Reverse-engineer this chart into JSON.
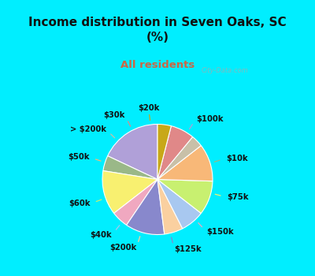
{
  "title": "Income distribution in Seven Oaks, SC\n(%)",
  "subtitle": "All residents",
  "title_color": "#111111",
  "subtitle_color": "#cc6644",
  "bg_cyan": "#00eeff",
  "bg_chart_tl": "#e8f5f0",
  "bg_chart_br": "#d0eee8",
  "labels": [
    "$100k",
    "$10k",
    "$75k",
    "$150k",
    "$125k",
    "$200k",
    "$40k",
    "$60k",
    "$50k",
    "> $200k",
    "$30k",
    "$20k"
  ],
  "values": [
    18.0,
    4.5,
    13.0,
    5.0,
    11.5,
    5.5,
    7.0,
    10.0,
    11.0,
    3.5,
    7.0,
    4.0
  ],
  "colors": [
    "#b0a0d8",
    "#9ab888",
    "#f8f070",
    "#f0a8c0",
    "#8888cc",
    "#fad0a0",
    "#a8c8f0",
    "#c8f070",
    "#f8b878",
    "#c8c0a8",
    "#e08888",
    "#c8a818"
  ],
  "figsize": [
    4.0,
    3.5
  ],
  "dpi": 100,
  "startangle": 90,
  "label_fontsize": 7.2,
  "label_fontweight": "bold",
  "label_color": "#111111",
  "watermark": "City-Data.com",
  "title_fontsize": 11,
  "subtitle_fontsize": 9.5
}
